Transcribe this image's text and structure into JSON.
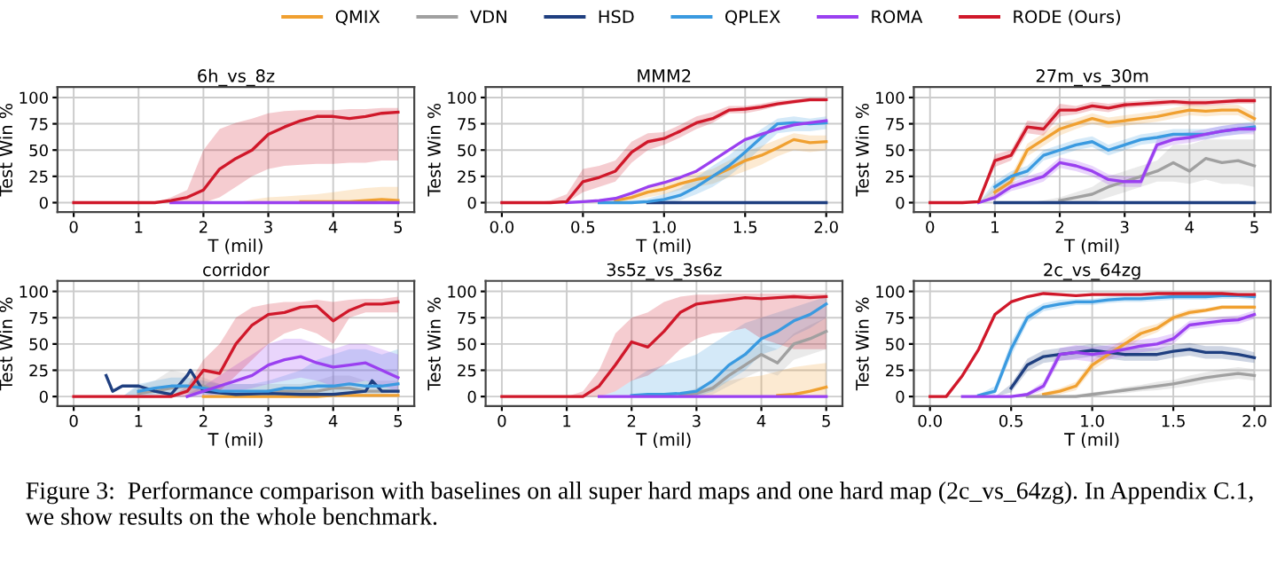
{
  "chart_data": [
    {
      "type": "line",
      "title": "6h_vs_8z",
      "xlabel": "T (mil)",
      "ylabel": "Test Win %",
      "xlim": [
        -0.25,
        5.25
      ],
      "ylim": [
        -9,
        110
      ],
      "xticks": [
        0,
        1,
        2,
        3,
        4,
        5
      ],
      "yticks": [
        0,
        25,
        50,
        75,
        100
      ],
      "grid": true,
      "legend": "top",
      "annotations": [
        "Figure 3:  Performance comparison with baselines on all super hard maps and one hard map (2c_vs_64zg). In Appendix C.1, we show results on the whole benchmark."
      ],
      "x": [
        0,
        0.25,
        0.5,
        0.75,
        1,
        1.25,
        1.5,
        1.75,
        2,
        2.25,
        2.5,
        2.75,
        3,
        3.25,
        3.5,
        3.75,
        4,
        4.25,
        4.5,
        4.75,
        5
      ],
      "series": [
        {
          "name": "QMIX",
          "color": "#f0a030",
          "values": [
            null,
            null,
            null,
            null,
            null,
            null,
            null,
            null,
            null,
            null,
            null,
            null,
            null,
            null,
            1,
            1,
            1,
            1,
            2,
            3,
            2
          ],
          "lower": [
            0,
            0,
            0,
            0,
            0,
            0,
            0,
            0,
            0,
            0,
            0,
            0,
            0,
            0,
            0,
            0,
            0,
            0,
            0,
            0,
            0
          ],
          "upper": [
            0,
            0,
            0,
            0,
            0,
            0,
            0,
            0,
            0,
            0,
            0,
            3,
            5,
            6,
            7,
            8,
            10,
            12,
            14,
            15,
            15
          ]
        },
        {
          "name": "VDN",
          "color": "#a0a0a0",
          "values": [
            null,
            null,
            null,
            null,
            null,
            null,
            null,
            null,
            null,
            null,
            null,
            null,
            null,
            null,
            null,
            null,
            null,
            null,
            null,
            null,
            null
          ]
        },
        {
          "name": "HSD",
          "color": "#1f3f80",
          "values": [
            null,
            null,
            null,
            null,
            null,
            null,
            null,
            null,
            null,
            null,
            null,
            null,
            null,
            null,
            null,
            null,
            null,
            null,
            null,
            null,
            null
          ]
        },
        {
          "name": "QPLEX",
          "color": "#3a9ae0",
          "values": [
            null,
            null,
            null,
            null,
            null,
            null,
            null,
            null,
            null,
            null,
            null,
            null,
            null,
            null,
            null,
            null,
            null,
            null,
            null,
            null,
            null
          ]
        },
        {
          "name": "ROMA",
          "color": "#9a40f0",
          "values": [
            null,
            null,
            null,
            null,
            null,
            null,
            0,
            0,
            0,
            0,
            0,
            0,
            0,
            0,
            0,
            0,
            0,
            0,
            0,
            0,
            0
          ]
        },
        {
          "name": "RODE (Ours)",
          "color": "#d0182a",
          "values": [
            0,
            0,
            0,
            0,
            0,
            0,
            2,
            5,
            12,
            32,
            42,
            50,
            65,
            72,
            78,
            82,
            82,
            80,
            82,
            85,
            86
          ],
          "lower": [
            0,
            0,
            0,
            0,
            0,
            0,
            0,
            0,
            0,
            5,
            15,
            25,
            32,
            35,
            36,
            37,
            37,
            38,
            38,
            40,
            40
          ],
          "upper": [
            0,
            0,
            0,
            0,
            0,
            0,
            5,
            12,
            50,
            70,
            76,
            80,
            85,
            87,
            88,
            88,
            88,
            89,
            89,
            90,
            90
          ]
        }
      ]
    },
    {
      "type": "line",
      "title": "MMM2",
      "xlabel": "T (mil)",
      "ylabel": "Test Win %",
      "xlim": [
        -0.1,
        2.1
      ],
      "ylim": [
        -9,
        110
      ],
      "xticks": [
        {
          "value": 0,
          "label": "0.0"
        },
        0.5,
        {
          "value": 1,
          "label": "1.0"
        },
        1.5,
        {
          "value": 2,
          "label": "2.0"
        }
      ],
      "yticks": [
        0,
        25,
        50,
        75,
        100
      ],
      "grid": true,
      "x": [
        0,
        0.1,
        0.2,
        0.3,
        0.4,
        0.5,
        0.6,
        0.7,
        0.8,
        0.9,
        1.0,
        1.1,
        1.2,
        1.3,
        1.4,
        1.5,
        1.6,
        1.7,
        1.8,
        1.9,
        2.0
      ],
      "series": [
        {
          "color": "#f0a030",
          "values": [
            null,
            null,
            null,
            null,
            null,
            null,
            null,
            2,
            5,
            10,
            13,
            18,
            22,
            25,
            32,
            40,
            45,
            52,
            60,
            57,
            58
          ],
          "lower": [
            0,
            0,
            0,
            0,
            0,
            0,
            0,
            0,
            2,
            5,
            8,
            12,
            15,
            18,
            24,
            30,
            36,
            44,
            50,
            48,
            50
          ],
          "upper": [
            0,
            0,
            0,
            0,
            0,
            0,
            0,
            4,
            8,
            15,
            18,
            24,
            28,
            32,
            40,
            48,
            54,
            60,
            66,
            64,
            64
          ]
        },
        {
          "color": "#a0a0a0",
          "values": [
            null,
            null,
            null,
            null,
            null,
            null,
            null,
            null,
            null,
            null,
            null,
            null,
            null,
            null,
            null,
            null,
            null,
            null,
            null,
            null,
            null
          ]
        },
        {
          "color": "#1f3f80",
          "values": [
            null,
            null,
            null,
            null,
            null,
            null,
            null,
            null,
            null,
            0,
            0,
            0,
            0,
            0,
            0,
            0,
            0,
            0,
            0,
            0,
            0
          ]
        },
        {
          "color": "#3a9ae0",
          "values": [
            null,
            null,
            null,
            null,
            null,
            null,
            0,
            0,
            0,
            1,
            3,
            7,
            15,
            25,
            35,
            48,
            62,
            75,
            76,
            75,
            76
          ],
          "lower": [
            0,
            0,
            0,
            0,
            0,
            0,
            0,
            0,
            0,
            0,
            0,
            2,
            8,
            15,
            25,
            38,
            52,
            66,
            68,
            68,
            70
          ],
          "upper": [
            0,
            0,
            0,
            0,
            0,
            0,
            0,
            0,
            2,
            4,
            8,
            14,
            24,
            35,
            45,
            58,
            70,
            80,
            82,
            80,
            82
          ]
        },
        {
          "color": "#9a40f0",
          "values": [
            null,
            null,
            null,
            null,
            0,
            1,
            2,
            4,
            9,
            15,
            19,
            24,
            30,
            40,
            50,
            60,
            65,
            70,
            74,
            76,
            78
          ]
        },
        {
          "color": "#d0182a",
          "values": [
            0,
            0,
            0,
            0,
            1,
            20,
            24,
            30,
            48,
            58,
            61,
            68,
            76,
            80,
            88,
            89,
            91,
            94,
            96,
            98,
            98
          ],
          "lower": [
            0,
            0,
            0,
            0,
            0,
            10,
            15,
            20,
            38,
            50,
            55,
            62,
            70,
            76,
            85,
            85,
            88,
            92,
            94,
            96,
            96
          ],
          "upper": [
            0,
            0,
            0,
            2,
            8,
            32,
            35,
            40,
            58,
            66,
            67,
            74,
            82,
            86,
            92,
            92,
            94,
            97,
            98,
            99,
            99
          ]
        }
      ]
    },
    {
      "type": "line",
      "title": "27m_vs_30m",
      "xlabel": "T (mil)",
      "ylabel": "Test Win %",
      "xlim": [
        -0.25,
        5.25
      ],
      "ylim": [
        -9,
        110
      ],
      "xticks": [
        0,
        1,
        2,
        3,
        4,
        5
      ],
      "yticks": [
        0,
        25,
        50,
        75,
        100
      ],
      "grid": true,
      "x": [
        0,
        0.25,
        0.5,
        0.75,
        1,
        1.25,
        1.5,
        1.75,
        2,
        2.25,
        2.5,
        2.75,
        3,
        3.25,
        3.5,
        3.75,
        4,
        4.25,
        4.5,
        4.75,
        5
      ],
      "series": [
        {
          "color": "#f0a030",
          "values": [
            null,
            null,
            null,
            null,
            10,
            20,
            50,
            60,
            70,
            75,
            80,
            76,
            78,
            80,
            82,
            85,
            88,
            87,
            88,
            88,
            80
          ],
          "lower": [
            0,
            0,
            0,
            0,
            5,
            14,
            44,
            54,
            64,
            70,
            75,
            71,
            73,
            75,
            77,
            80,
            83,
            82,
            83,
            83,
            75
          ],
          "upper": [
            0,
            0,
            0,
            0,
            15,
            26,
            56,
            66,
            76,
            80,
            85,
            81,
            83,
            85,
            87,
            90,
            93,
            92,
            93,
            93,
            85
          ]
        },
        {
          "color": "#a0a0a0",
          "values": [
            null,
            null,
            null,
            null,
            null,
            null,
            null,
            null,
            2,
            5,
            8,
            15,
            20,
            25,
            30,
            38,
            30,
            42,
            38,
            40,
            35
          ],
          "lower": [
            0,
            0,
            0,
            0,
            0,
            0,
            0,
            0,
            0,
            0,
            0,
            5,
            10,
            15,
            20,
            20,
            18,
            22,
            18,
            18,
            15
          ],
          "upper": [
            0,
            0,
            0,
            0,
            0,
            0,
            0,
            2,
            5,
            10,
            15,
            25,
            30,
            35,
            40,
            55,
            55,
            60,
            60,
            60,
            60
          ]
        },
        {
          "color": "#1f3f80",
          "values": [
            null,
            null,
            null,
            null,
            0,
            0,
            0,
            0,
            0,
            0,
            0,
            0,
            0,
            0,
            0,
            0,
            0,
            0,
            0,
            0,
            0
          ]
        },
        {
          "color": "#3a9ae0",
          "values": [
            null,
            null,
            null,
            null,
            15,
            25,
            30,
            45,
            50,
            55,
            58,
            50,
            55,
            60,
            62,
            65,
            65,
            65,
            68,
            70,
            72
          ],
          "lower": [
            0,
            0,
            0,
            0,
            10,
            20,
            25,
            40,
            45,
            50,
            53,
            45,
            50,
            55,
            57,
            60,
            60,
            60,
            63,
            65,
            67
          ],
          "upper": [
            0,
            0,
            0,
            0,
            20,
            30,
            35,
            50,
            55,
            60,
            63,
            55,
            60,
            65,
            67,
            70,
            70,
            70,
            73,
            75,
            77
          ]
        },
        {
          "color": "#9a40f0",
          "values": [
            null,
            null,
            null,
            0,
            5,
            15,
            20,
            25,
            38,
            35,
            30,
            22,
            20,
            20,
            55,
            60,
            62,
            65,
            68,
            70,
            70
          ],
          "lower": [
            0,
            0,
            0,
            0,
            2,
            11,
            15,
            20,
            33,
            30,
            25,
            17,
            15,
            15,
            50,
            55,
            57,
            60,
            63,
            65,
            65
          ],
          "upper": [
            0,
            0,
            0,
            0,
            9,
            19,
            25,
            30,
            43,
            40,
            35,
            27,
            25,
            25,
            60,
            65,
            67,
            70,
            73,
            75,
            75
          ]
        },
        {
          "color": "#d0182a",
          "values": [
            0,
            0,
            0,
            1,
            40,
            45,
            72,
            70,
            88,
            88,
            92,
            90,
            93,
            94,
            95,
            96,
            95,
            95,
            96,
            97,
            97
          ],
          "lower": [
            0,
            0,
            0,
            0,
            34,
            40,
            66,
            64,
            82,
            84,
            88,
            86,
            90,
            91,
            92,
            93,
            92,
            92,
            93,
            94,
            94
          ],
          "upper": [
            0,
            0,
            0,
            2,
            46,
            50,
            78,
            76,
            94,
            92,
            96,
            94,
            96,
            97,
            98,
            98,
            98,
            98,
            98,
            99,
            99
          ]
        }
      ]
    },
    {
      "type": "line",
      "title": "corridor",
      "xlabel": "T (mil)",
      "ylabel": "Test Win %",
      "xlim": [
        -0.25,
        5.25
      ],
      "ylim": [
        -9,
        110
      ],
      "xticks": [
        0,
        1,
        2,
        3,
        4,
        5
      ],
      "yticks": [
        0,
        25,
        50,
        75,
        100
      ],
      "grid": true,
      "x": [
        0,
        0.25,
        0.5,
        0.75,
        1,
        1.25,
        1.5,
        1.75,
        2,
        2.25,
        2.5,
        2.75,
        3,
        3.25,
        3.5,
        3.75,
        4,
        4.25,
        4.5,
        4.75,
        5
      ],
      "series": [
        {
          "color": "#f0a030",
          "values": [
            null,
            null,
            null,
            null,
            null,
            null,
            null,
            null,
            0,
            0,
            0,
            0,
            0,
            0,
            0,
            0,
            1,
            1,
            1,
            1,
            1
          ]
        },
        {
          "color": "#a0a0a0",
          "values": [
            null,
            null,
            null,
            null,
            3,
            5,
            8,
            10,
            10,
            5,
            null,
            null,
            5,
            5,
            5,
            5,
            8,
            8,
            5,
            5,
            5
          ],
          "lower": [
            0,
            0,
            0,
            0,
            0,
            0,
            2,
            3,
            3,
            0,
            0,
            0,
            0,
            0,
            0,
            0,
            2,
            2,
            0,
            0,
            0
          ],
          "upper": [
            0,
            0,
            0,
            0,
            10,
            15,
            25,
            22,
            18,
            12,
            12,
            12,
            12,
            12,
            12,
            15,
            20,
            20,
            15,
            15,
            15
          ]
        },
        {
          "color": "#1f3f80",
          "x": [
            0.5,
            0.6,
            0.75,
            1.0,
            1.25,
            1.5,
            1.75,
            1.8,
            2.0,
            2.5,
            3.0,
            3.5,
            4.0,
            4.5,
            4.6,
            4.75,
            5.0
          ],
          "values": [
            20,
            5,
            10,
            10,
            5,
            2,
            20,
            25,
            5,
            2,
            3,
            2,
            2,
            5,
            15,
            5,
            5
          ]
        },
        {
          "color": "#3a9ae0",
          "values": [
            null,
            null,
            null,
            null,
            5,
            8,
            10,
            10,
            8,
            5,
            5,
            5,
            5,
            8,
            8,
            10,
            10,
            12,
            10,
            10,
            12
          ],
          "lower": [
            0,
            0,
            0,
            0,
            0,
            2,
            3,
            3,
            2,
            0,
            0,
            0,
            0,
            2,
            2,
            3,
            3,
            4,
            3,
            3,
            4
          ],
          "upper": [
            0,
            0,
            0,
            0,
            12,
            15,
            18,
            18,
            15,
            12,
            12,
            12,
            15,
            20,
            25,
            35,
            40,
            45,
            45,
            40,
            45
          ]
        },
        {
          "color": "#9a40f0",
          "values": [
            null,
            null,
            null,
            null,
            null,
            null,
            null,
            0,
            5,
            10,
            15,
            20,
            30,
            35,
            38,
            32,
            28,
            30,
            32,
            25,
            18
          ],
          "lower": [
            0,
            0,
            0,
            0,
            0,
            0,
            0,
            0,
            0,
            2,
            5,
            8,
            12,
            15,
            18,
            15,
            10,
            12,
            15,
            10,
            5
          ],
          "upper": [
            0,
            0,
            0,
            0,
            0,
            0,
            0,
            2,
            10,
            20,
            30,
            40,
            50,
            55,
            55,
            50,
            45,
            50,
            50,
            45,
            40
          ]
        },
        {
          "color": "#d0182a",
          "values": [
            0,
            0,
            0,
            0,
            0,
            0,
            0,
            5,
            25,
            22,
            50,
            68,
            78,
            80,
            85,
            86,
            72,
            82,
            88,
            88,
            90
          ],
          "lower": [
            0,
            0,
            0,
            0,
            0,
            0,
            0,
            0,
            5,
            5,
            20,
            35,
            50,
            60,
            65,
            60,
            50,
            75,
            80,
            80,
            80
          ],
          "upper": [
            0,
            0,
            0,
            0,
            0,
            0,
            0,
            10,
            35,
            50,
            75,
            85,
            88,
            90,
            90,
            92,
            90,
            92,
            93,
            93,
            95
          ]
        }
      ]
    },
    {
      "type": "line",
      "title": "3s5z_vs_3s6z",
      "xlabel": "T (mil)",
      "ylabel": "Test Win %",
      "xlim": [
        -0.25,
        5.25
      ],
      "ylim": [
        -9,
        110
      ],
      "xticks": [
        0,
        1,
        2,
        3,
        4,
        5
      ],
      "yticks": [
        0,
        25,
        50,
        75,
        100
      ],
      "grid": true,
      "x": [
        0,
        0.25,
        0.5,
        0.75,
        1,
        1.25,
        1.5,
        1.75,
        2,
        2.25,
        2.5,
        2.75,
        3,
        3.25,
        3.5,
        3.75,
        4,
        4.25,
        4.5,
        4.75,
        5
      ],
      "series": [
        {
          "color": "#f0a030",
          "values": [
            null,
            null,
            null,
            null,
            null,
            null,
            null,
            null,
            null,
            null,
            null,
            null,
            null,
            null,
            null,
            null,
            null,
            1,
            2,
            5,
            9
          ],
          "lower": [
            0,
            0,
            0,
            0,
            0,
            0,
            0,
            0,
            0,
            0,
            0,
            0,
            0,
            0,
            0,
            0,
            0,
            0,
            0,
            0,
            0
          ],
          "upper": [
            0,
            0,
            0,
            0,
            0,
            0,
            0,
            0,
            0,
            0,
            0,
            2,
            5,
            10,
            15,
            18,
            20,
            24,
            28,
            30,
            32
          ]
        },
        {
          "color": "#a0a0a0",
          "values": [
            null,
            null,
            null,
            null,
            null,
            null,
            null,
            null,
            null,
            null,
            null,
            1,
            3,
            8,
            20,
            30,
            40,
            32,
            50,
            55,
            62
          ],
          "lower": [
            0,
            0,
            0,
            0,
            0,
            0,
            0,
            0,
            0,
            0,
            0,
            0,
            0,
            2,
            10,
            18,
            25,
            20,
            35,
            40,
            45
          ],
          "upper": [
            0,
            0,
            0,
            0,
            0,
            0,
            0,
            0,
            0,
            0,
            0,
            3,
            8,
            15,
            30,
            40,
            50,
            45,
            60,
            68,
            75
          ]
        },
        {
          "color": "#1f3f80",
          "values": [
            null,
            null,
            null,
            null,
            null,
            null,
            null,
            null,
            null,
            null,
            null,
            null,
            null,
            null,
            null,
            null,
            null,
            null,
            null,
            null,
            null
          ]
        },
        {
          "color": "#3a9ae0",
          "values": [
            null,
            null,
            null,
            null,
            null,
            null,
            null,
            null,
            1,
            2,
            2,
            3,
            5,
            15,
            30,
            40,
            55,
            62,
            72,
            78,
            88
          ],
          "lower": [
            0,
            0,
            0,
            0,
            0,
            0,
            0,
            0,
            0,
            0,
            0,
            0,
            0,
            5,
            15,
            25,
            40,
            45,
            58,
            65,
            75
          ],
          "upper": [
            0,
            0,
            0,
            0,
            0,
            0,
            0,
            5,
            15,
            25,
            30,
            35,
            40,
            50,
            60,
            70,
            75,
            80,
            85,
            90,
            95
          ]
        },
        {
          "color": "#9a40f0",
          "values": [
            null,
            null,
            null,
            null,
            null,
            null,
            0,
            0,
            0,
            0,
            0,
            0,
            0,
            0,
            0,
            0,
            0,
            0,
            0,
            0,
            0
          ]
        },
        {
          "color": "#d0182a",
          "values": [
            0,
            0,
            0,
            0,
            0,
            0,
            10,
            30,
            52,
            47,
            62,
            80,
            88,
            90,
            92,
            94,
            93,
            94,
            95,
            94,
            95
          ],
          "lower": [
            0,
            0,
            0,
            0,
            0,
            0,
            0,
            5,
            15,
            20,
            30,
            45,
            55,
            60,
            62,
            65,
            55,
            50,
            45,
            45,
            45
          ],
          "upper": [
            0,
            0,
            0,
            0,
            0,
            5,
            25,
            60,
            75,
            80,
            90,
            95,
            97,
            97,
            98,
            98,
            98,
            98,
            98,
            98,
            98
          ]
        }
      ]
    },
    {
      "type": "line",
      "title": "2c_vs_64zg",
      "xlabel": "T (mil)",
      "ylabel": "Test Win %",
      "xlim": [
        -0.1,
        2.1
      ],
      "ylim": [
        -9,
        110
      ],
      "xticks": [
        {
          "value": 0,
          "label": "0.0"
        },
        0.5,
        {
          "value": 1,
          "label": "1.0"
        },
        1.5,
        {
          "value": 2,
          "label": "2.0"
        }
      ],
      "yticks": [
        0,
        25,
        50,
        75,
        100
      ],
      "grid": true,
      "x": [
        0,
        0.1,
        0.2,
        0.3,
        0.4,
        0.5,
        0.6,
        0.7,
        0.8,
        0.9,
        1.0,
        1.1,
        1.2,
        1.3,
        1.4,
        1.5,
        1.6,
        1.7,
        1.8,
        1.9,
        2.0
      ],
      "series": [
        {
          "color": "#f0a030",
          "values": [
            null,
            null,
            null,
            null,
            null,
            null,
            null,
            2,
            5,
            10,
            30,
            40,
            50,
            60,
            65,
            75,
            80,
            82,
            85,
            85,
            85
          ],
          "lower": [
            0,
            0,
            0,
            0,
            0,
            0,
            0,
            0,
            2,
            6,
            25,
            35,
            45,
            55,
            61,
            72,
            77,
            80,
            83,
            83,
            83
          ],
          "upper": [
            0,
            0,
            0,
            0,
            0,
            0,
            0,
            4,
            8,
            14,
            35,
            45,
            55,
            65,
            69,
            78,
            83,
            84,
            87,
            87,
            87
          ]
        },
        {
          "color": "#a0a0a0",
          "values": [
            null,
            null,
            null,
            null,
            null,
            null,
            0,
            0,
            0,
            0,
            2,
            4,
            6,
            8,
            10,
            12,
            15,
            18,
            20,
            22,
            20
          ],
          "lower": [
            0,
            0,
            0,
            0,
            0,
            0,
            0,
            0,
            0,
            0,
            0,
            2,
            3,
            5,
            6,
            8,
            10,
            13,
            15,
            17,
            15
          ],
          "upper": [
            0,
            0,
            0,
            0,
            0,
            0,
            0,
            0,
            0,
            2,
            4,
            6,
            9,
            11,
            14,
            16,
            20,
            23,
            26,
            28,
            26
          ]
        },
        {
          "color": "#1f3f80",
          "values": [
            null,
            null,
            null,
            null,
            null,
            8,
            30,
            38,
            40,
            42,
            44,
            42,
            40,
            40,
            40,
            43,
            45,
            42,
            42,
            40,
            37
          ],
          "lower": [
            0,
            0,
            0,
            0,
            0,
            4,
            24,
            32,
            34,
            36,
            38,
            36,
            34,
            34,
            34,
            37,
            39,
            36,
            36,
            34,
            32
          ],
          "upper": [
            0,
            0,
            0,
            0,
            0,
            12,
            36,
            44,
            46,
            48,
            50,
            48,
            46,
            46,
            46,
            49,
            51,
            48,
            48,
            46,
            42
          ]
        },
        {
          "color": "#3a9ae0",
          "values": [
            null,
            null,
            null,
            1,
            5,
            45,
            75,
            85,
            88,
            90,
            90,
            92,
            93,
            93,
            94,
            95,
            95,
            95,
            96,
            96,
            95
          ],
          "lower": [
            0,
            0,
            0,
            0,
            2,
            38,
            70,
            81,
            84,
            87,
            87,
            89,
            90,
            90,
            91,
            92,
            92,
            92,
            93,
            93,
            92
          ],
          "upper": [
            0,
            0,
            0,
            2,
            10,
            52,
            80,
            89,
            92,
            93,
            93,
            95,
            96,
            96,
            97,
            98,
            98,
            98,
            99,
            99,
            98
          ]
        },
        {
          "color": "#9a40f0",
          "values": [
            null,
            null,
            0,
            0,
            0,
            0,
            2,
            10,
            40,
            42,
            40,
            42,
            45,
            48,
            50,
            55,
            68,
            70,
            72,
            73,
            78
          ],
          "lower": [
            0,
            0,
            0,
            0,
            0,
            0,
            0,
            6,
            34,
            35,
            33,
            35,
            38,
            42,
            44,
            50,
            64,
            66,
            68,
            69,
            74
          ],
          "upper": [
            0,
            0,
            0,
            0,
            0,
            0,
            4,
            14,
            46,
            49,
            47,
            49,
            52,
            54,
            56,
            60,
            72,
            74,
            76,
            77,
            82
          ]
        },
        {
          "color": "#d0182a",
          "values": [
            0,
            0,
            20,
            45,
            78,
            90,
            95,
            98,
            97,
            96,
            97,
            97,
            97,
            97,
            98,
            98,
            98,
            98,
            98,
            97,
            97
          ]
        }
      ]
    }
  ]
}
